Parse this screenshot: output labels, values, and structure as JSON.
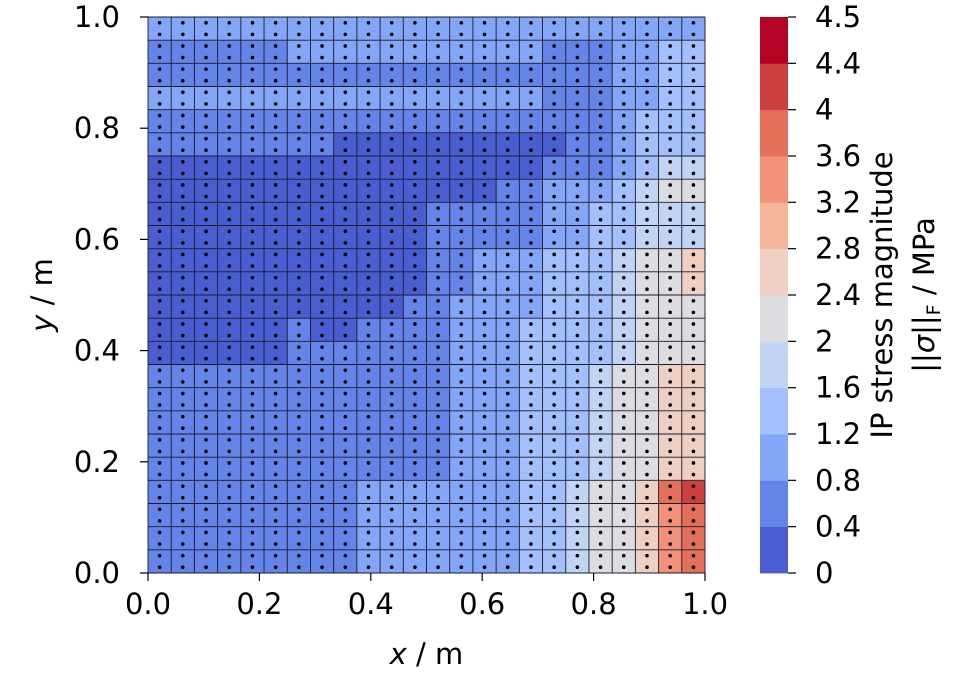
{
  "chart_data": {
    "type": "heatmap",
    "title": "",
    "xlabel": "x / m",
    "ylabel": "y / m",
    "xlim": [
      0.0,
      1.0
    ],
    "ylim": [
      0.0,
      1.0
    ],
    "x_ticks": [
      "0.0",
      "0.2",
      "0.4",
      "0.6",
      "0.8",
      "1.0"
    ],
    "y_ticks": [
      "0.0",
      "0.2",
      "0.4",
      "0.6",
      "0.8",
      "1.0"
    ],
    "grid_x_cells": 24,
    "grid_y_cells": 24,
    "colorbar": {
      "label_line1": "IP stress magnitude",
      "label_line2": "||σ||_F / MPa",
      "boundaries": [
        0,
        0.4,
        0.8,
        1.2,
        1.6,
        2,
        2.4,
        2.8,
        3.2,
        3.6,
        4,
        4.4,
        4.5
      ],
      "tick_labels": [
        "0",
        "0.4",
        "0.8",
        "1.2",
        "1.6",
        "2",
        "2.4",
        "2.8",
        "3.2",
        "3.6",
        "4",
        "4.4",
        "4.5"
      ],
      "colors": [
        "#4a5ed2",
        "#6484e8",
        "#84a6f7",
        "#a4c0fc",
        "#c2d4f4",
        "#dcdde1",
        "#efcfc1",
        "#f5b59b",
        "#f1917a",
        "#e4705a",
        "#cc4040",
        "#b40426"
      ]
    },
    "values_by_row_from_bottom": [
      [
        0.6,
        0.6,
        0.6,
        0.6,
        0.6,
        0.6,
        0.6,
        0.6,
        0.6,
        0.8,
        0.8,
        0.8,
        0.8,
        0.8,
        1.0,
        1.0,
        1.4,
        1.4,
        1.8,
        2.0,
        2.2,
        2.6,
        3.3,
        3.8
      ],
      [
        0.6,
        0.6,
        0.6,
        0.6,
        0.6,
        0.6,
        0.6,
        0.6,
        0.6,
        0.8,
        0.8,
        0.8,
        0.8,
        0.8,
        1.0,
        1.0,
        1.4,
        1.4,
        1.8,
        2.0,
        2.2,
        2.6,
        3.3,
        3.8
      ],
      [
        0.6,
        0.6,
        0.6,
        0.6,
        0.6,
        0.6,
        0.6,
        0.6,
        0.6,
        0.8,
        0.8,
        0.8,
        0.8,
        0.8,
        1.0,
        1.0,
        1.4,
        1.4,
        1.8,
        2.0,
        2.2,
        2.6,
        3.3,
        3.8
      ],
      [
        0.6,
        0.6,
        0.6,
        0.6,
        0.6,
        0.6,
        0.6,
        0.6,
        0.6,
        0.8,
        0.8,
        0.8,
        0.8,
        0.8,
        1.0,
        1.0,
        1.4,
        1.4,
        1.8,
        2.0,
        2.2,
        2.6,
        3.7,
        4.3
      ],
      [
        0.6,
        0.6,
        0.6,
        0.6,
        0.6,
        0.6,
        0.6,
        0.6,
        0.6,
        0.6,
        0.6,
        0.6,
        0.6,
        0.8,
        1.0,
        1.0,
        1.4,
        1.4,
        1.4,
        1.8,
        2.2,
        2.2,
        2.6,
        2.6
      ],
      [
        0.6,
        0.6,
        0.6,
        0.6,
        0.6,
        0.6,
        0.6,
        0.6,
        0.6,
        0.6,
        0.6,
        0.6,
        0.6,
        0.8,
        1.0,
        1.0,
        1.4,
        1.4,
        1.4,
        1.8,
        2.2,
        2.2,
        2.6,
        2.6
      ],
      [
        0.6,
        0.6,
        0.6,
        0.6,
        0.6,
        0.6,
        0.6,
        0.6,
        0.6,
        0.6,
        0.6,
        0.6,
        0.6,
        0.8,
        1.0,
        1.0,
        1.4,
        1.4,
        1.4,
        1.8,
        2.2,
        2.2,
        2.6,
        2.6
      ],
      [
        0.6,
        0.6,
        0.6,
        0.6,
        0.6,
        0.6,
        0.6,
        0.6,
        0.6,
        0.6,
        0.6,
        0.6,
        0.6,
        0.8,
        1.0,
        1.0,
        1.4,
        1.4,
        1.4,
        1.8,
        2.2,
        2.2,
        2.6,
        2.6
      ],
      [
        0.6,
        0.6,
        0.6,
        0.6,
        0.6,
        0.6,
        0.6,
        0.6,
        0.6,
        0.6,
        0.6,
        0.6,
        0.6,
        0.8,
        1.0,
        1.0,
        1.4,
        1.4,
        1.4,
        1.8,
        2.2,
        2.2,
        2.6,
        2.6
      ],
      [
        0.2,
        0.2,
        0.2,
        0.2,
        0.2,
        0.2,
        0.6,
        0.6,
        0.6,
        0.6,
        0.6,
        0.6,
        0.6,
        0.8,
        1.0,
        1.0,
        1.4,
        1.4,
        1.4,
        1.4,
        1.8,
        2.2,
        2.2,
        2.2
      ],
      [
        0.2,
        0.2,
        0.2,
        0.2,
        0.2,
        0.2,
        0.6,
        0.2,
        0.2,
        0.6,
        0.6,
        0.6,
        0.6,
        0.8,
        1.0,
        1.0,
        1.4,
        1.4,
        1.4,
        1.4,
        1.8,
        2.2,
        2.2,
        2.2
      ],
      [
        0.2,
        0.2,
        0.2,
        0.2,
        0.2,
        0.2,
        0.2,
        0.2,
        0.2,
        0.2,
        0.2,
        0.6,
        0.6,
        0.8,
        1.0,
        1.0,
        1.0,
        1.4,
        1.4,
        1.4,
        1.8,
        2.2,
        2.2,
        2.2
      ],
      [
        0.2,
        0.2,
        0.2,
        0.2,
        0.2,
        0.2,
        0.2,
        0.2,
        0.2,
        0.2,
        0.2,
        0.2,
        0.6,
        0.6,
        1.0,
        1.0,
        1.0,
        1.4,
        1.4,
        1.4,
        1.8,
        2.2,
        2.2,
        2.6
      ],
      [
        0.2,
        0.2,
        0.2,
        0.2,
        0.2,
        0.2,
        0.2,
        0.2,
        0.2,
        0.2,
        0.2,
        0.2,
        0.6,
        0.6,
        1.0,
        1.0,
        1.0,
        1.4,
        1.4,
        1.4,
        1.8,
        2.2,
        2.2,
        2.6
      ],
      [
        0.2,
        0.2,
        0.2,
        0.2,
        0.2,
        0.2,
        0.2,
        0.2,
        0.2,
        0.2,
        0.2,
        0.2,
        0.6,
        0.6,
        0.6,
        0.6,
        0.6,
        1.0,
        1.0,
        1.4,
        1.4,
        1.8,
        1.8,
        1.8
      ],
      [
        0.2,
        0.2,
        0.2,
        0.2,
        0.2,
        0.2,
        0.2,
        0.2,
        0.2,
        0.2,
        0.2,
        0.2,
        0.6,
        0.6,
        0.6,
        0.6,
        0.6,
        1.0,
        1.0,
        1.4,
        1.4,
        1.8,
        1.8,
        1.8
      ],
      [
        0.2,
        0.2,
        0.2,
        0.2,
        0.2,
        0.2,
        0.2,
        0.2,
        0.2,
        0.2,
        0.2,
        0.2,
        0.2,
        0.2,
        0.2,
        0.6,
        0.6,
        1.0,
        1.0,
        1.0,
        1.4,
        1.8,
        2.2,
        2.2
      ],
      [
        0.2,
        0.2,
        0.2,
        0.2,
        0.2,
        0.2,
        0.2,
        0.2,
        0.2,
        0.2,
        0.2,
        0.2,
        0.2,
        0.2,
        0.2,
        0.2,
        0.2,
        0.6,
        0.6,
        0.6,
        1.0,
        1.4,
        1.8,
        1.8
      ],
      [
        0.6,
        0.6,
        0.6,
        0.6,
        0.6,
        0.6,
        0.6,
        0.6,
        0.2,
        0.2,
        0.2,
        0.2,
        0.2,
        0.2,
        0.2,
        0.2,
        0.2,
        0.2,
        0.6,
        0.6,
        1.0,
        1.4,
        1.4,
        1.4
      ],
      [
        0.6,
        0.6,
        0.6,
        0.6,
        0.6,
        0.6,
        0.6,
        0.6,
        0.6,
        0.6,
        0.6,
        0.6,
        0.6,
        0.6,
        0.6,
        0.6,
        0.6,
        0.6,
        0.6,
        0.6,
        1.0,
        1.4,
        1.4,
        1.4
      ],
      [
        1.0,
        1.0,
        1.0,
        1.0,
        1.0,
        1.0,
        1.0,
        1.0,
        1.0,
        1.0,
        1.0,
        1.0,
        1.0,
        1.0,
        1.0,
        1.0,
        1.0,
        0.6,
        0.6,
        0.6,
        1.0,
        1.0,
        1.4,
        1.4
      ],
      [
        0.6,
        0.6,
        0.6,
        0.6,
        0.6,
        0.6,
        0.6,
        0.6,
        0.6,
        0.6,
        0.6,
        0.6,
        0.6,
        0.6,
        0.6,
        0.6,
        0.6,
        0.6,
        0.6,
        0.6,
        1.0,
        1.0,
        1.4,
        1.4
      ],
      [
        0.6,
        0.6,
        0.6,
        0.6,
        0.6,
        0.6,
        1.0,
        1.0,
        1.0,
        1.0,
        1.0,
        1.0,
        1.0,
        1.0,
        1.0,
        1.0,
        1.0,
        0.6,
        0.6,
        0.6,
        1.0,
        1.0,
        1.4,
        1.4
      ],
      [
        1.0,
        1.0,
        1.0,
        1.0,
        1.0,
        1.0,
        1.0,
        1.0,
        1.0,
        1.0,
        1.0,
        1.0,
        1.0,
        1.0,
        1.0,
        1.0,
        1.0,
        1.0,
        1.0,
        1.0,
        1.0,
        1.0,
        1.0,
        1.0
      ]
    ]
  }
}
